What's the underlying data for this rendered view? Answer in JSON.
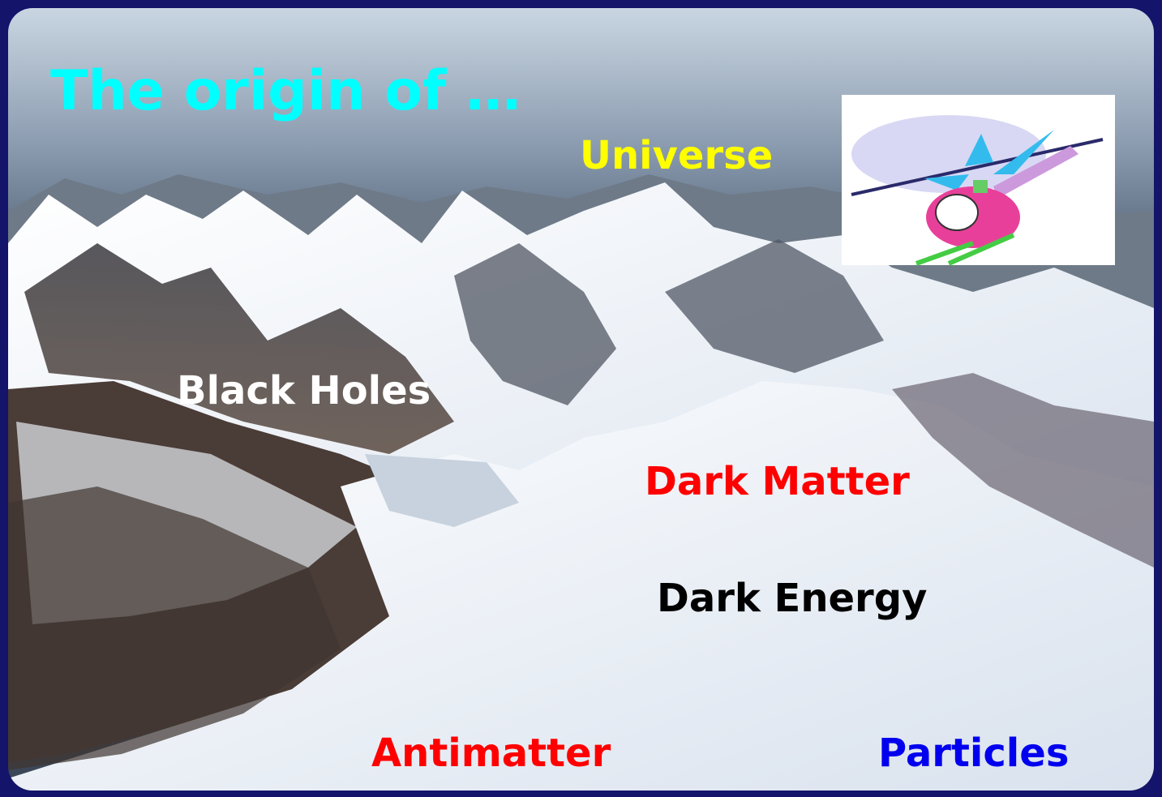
{
  "slide": {
    "title": "The origin of …",
    "labels": [
      "Universe",
      "Black Holes",
      "Dark Matter",
      "Dark Energy",
      "Antimatter",
      "Particles"
    ]
  }
}
